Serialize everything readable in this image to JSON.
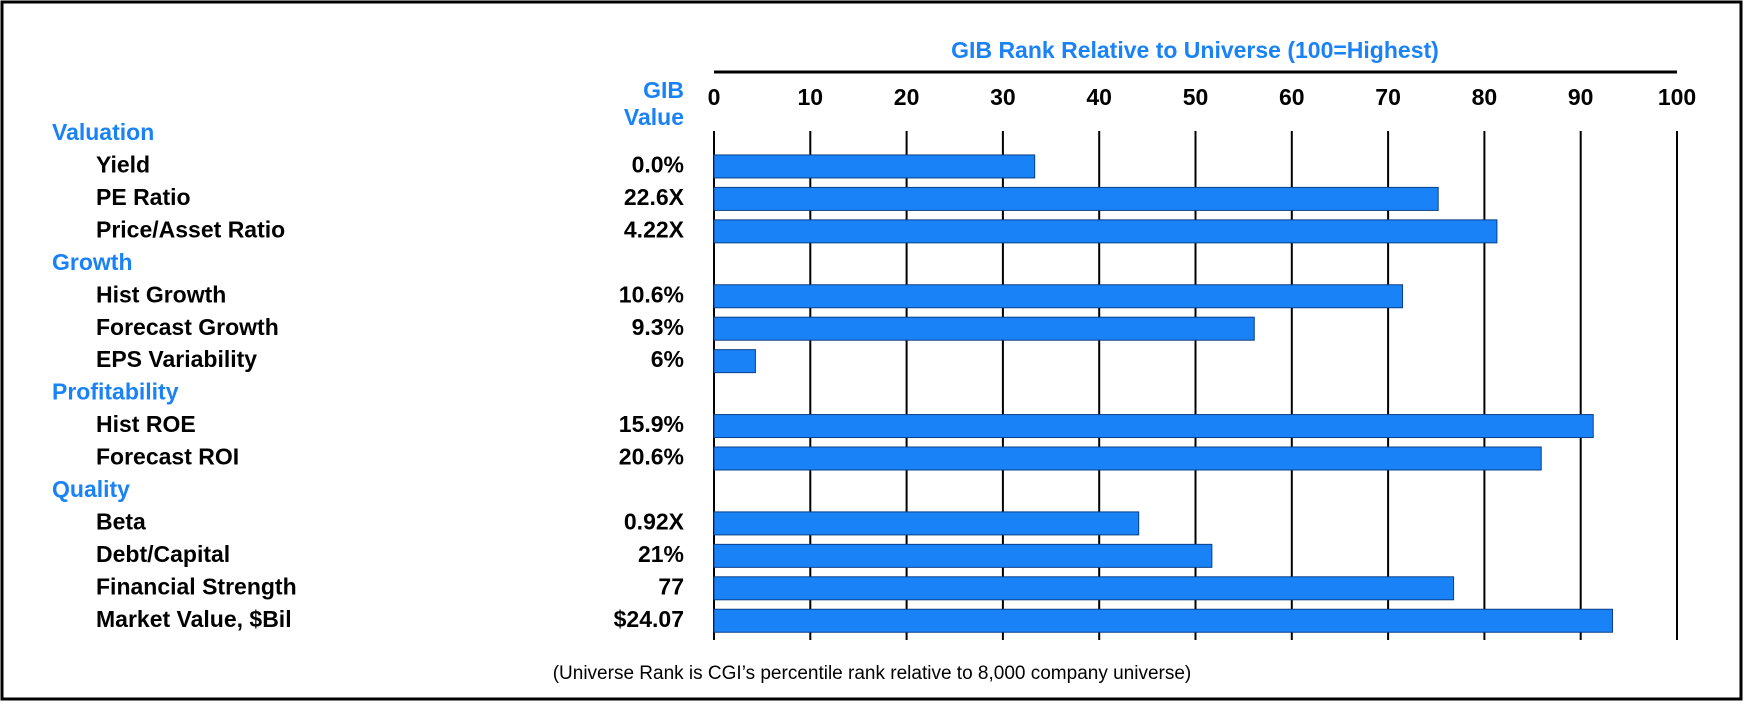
{
  "chart_data": {
    "type": "bar",
    "title": "GIB Rank Relative to Universe (100=Highest)",
    "value_header": "GIB Value",
    "color": "#1a82f7",
    "xlim": [
      0,
      100
    ],
    "xticks": [
      0,
      10,
      20,
      30,
      40,
      50,
      60,
      70,
      80,
      90,
      100
    ],
    "grid": true,
    "groups": [
      {
        "name": "Valuation",
        "items": [
          {
            "label": "Yield",
            "gib_value": "0.0%",
            "rank": 33.3
          },
          {
            "label": "PE Ratio",
            "gib_value": "22.6X",
            "rank": 75.2
          },
          {
            "label": "Price/Asset Ratio",
            "gib_value": "4.22X",
            "rank": 81.3
          }
        ]
      },
      {
        "name": "Growth",
        "items": [
          {
            "label": "Hist Growth",
            "gib_value": "10.6%",
            "rank": 71.5
          },
          {
            "label": "Forecast Growth",
            "gib_value": "9.3%",
            "rank": 56.1
          },
          {
            "label": "EPS Variability",
            "gib_value": "6%",
            "rank": 4.3
          }
        ]
      },
      {
        "name": "Profitability",
        "items": [
          {
            "label": "Hist ROE",
            "gib_value": "15.9%",
            "rank": 91.3
          },
          {
            "label": "Forecast ROI",
            "gib_value": "20.6%",
            "rank": 85.9
          }
        ]
      },
      {
        "name": "Quality",
        "items": [
          {
            "label": "Beta",
            "gib_value": "0.92X",
            "rank": 44.1
          },
          {
            "label": "Debt/Capital",
            "gib_value": "21%",
            "rank": 51.7
          },
          {
            "label": "Financial Strength",
            "gib_value": "77",
            "rank": 76.8
          },
          {
            "label": "Market Value, $Bil",
            "gib_value": "$24.07",
            "rank": 93.3
          }
        ]
      }
    ],
    "footnote": "(Universe Rank is CGI’s percentile rank relative to 8,000 company universe)"
  }
}
